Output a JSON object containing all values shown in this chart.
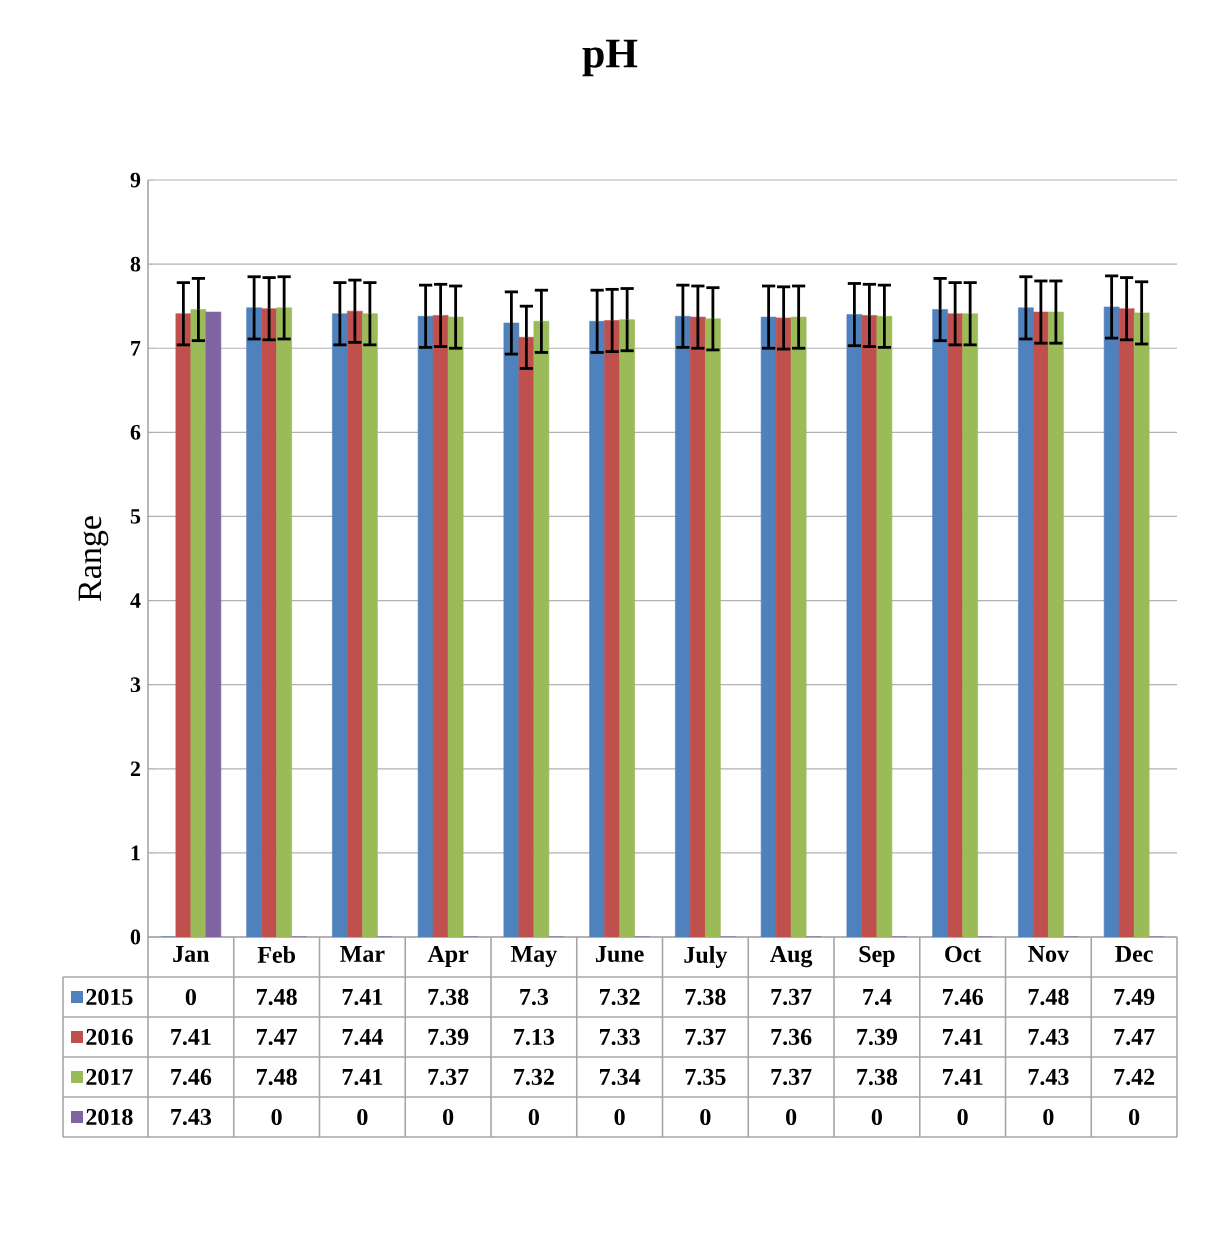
{
  "chart_data": {
    "type": "bar",
    "title": "pH",
    "ylabel": "Range",
    "categories": [
      "Jan",
      "Feb",
      "Mar",
      "Apr",
      "May",
      "June",
      "July",
      "Aug",
      "Sep",
      "Oct",
      "Nov",
      "Dec"
    ],
    "series": [
      {
        "name": "2015",
        "color": "#4f81bd",
        "values": [
          0,
          7.48,
          7.41,
          7.38,
          7.3,
          7.32,
          7.38,
          7.37,
          7.4,
          7.46,
          7.48,
          7.49
        ],
        "errors": [
          null,
          0.37,
          0.37,
          0.37,
          0.37,
          0.37,
          0.37,
          0.37,
          0.37,
          0.37,
          0.37,
          0.37
        ]
      },
      {
        "name": "2016",
        "color": "#c0504d",
        "values": [
          7.41,
          7.47,
          7.44,
          7.39,
          7.13,
          7.33,
          7.37,
          7.36,
          7.39,
          7.41,
          7.43,
          7.47
        ],
        "errors": [
          0.37,
          0.37,
          0.37,
          0.37,
          0.37,
          0.37,
          0.37,
          0.37,
          0.37,
          0.37,
          0.37,
          0.37
        ]
      },
      {
        "name": "2017",
        "color": "#9bbb59",
        "values": [
          7.46,
          7.48,
          7.41,
          7.37,
          7.32,
          7.34,
          7.35,
          7.37,
          7.38,
          7.41,
          7.43,
          7.42
        ],
        "errors": [
          0.37,
          0.37,
          0.37,
          0.37,
          0.37,
          0.37,
          0.37,
          0.37,
          0.37,
          0.37,
          0.37,
          0.37
        ]
      },
      {
        "name": "2018",
        "color": "#8064a2",
        "values": [
          7.43,
          0,
          0,
          0,
          0,
          0,
          0,
          0,
          0,
          0,
          0,
          0
        ]
      }
    ],
    "ylim": [
      0,
      9
    ],
    "yticks": [
      0,
      1,
      2,
      3,
      4,
      5,
      6,
      7,
      8,
      9
    ],
    "grid": "y",
    "legend": "bottom",
    "data_labels": true
  }
}
